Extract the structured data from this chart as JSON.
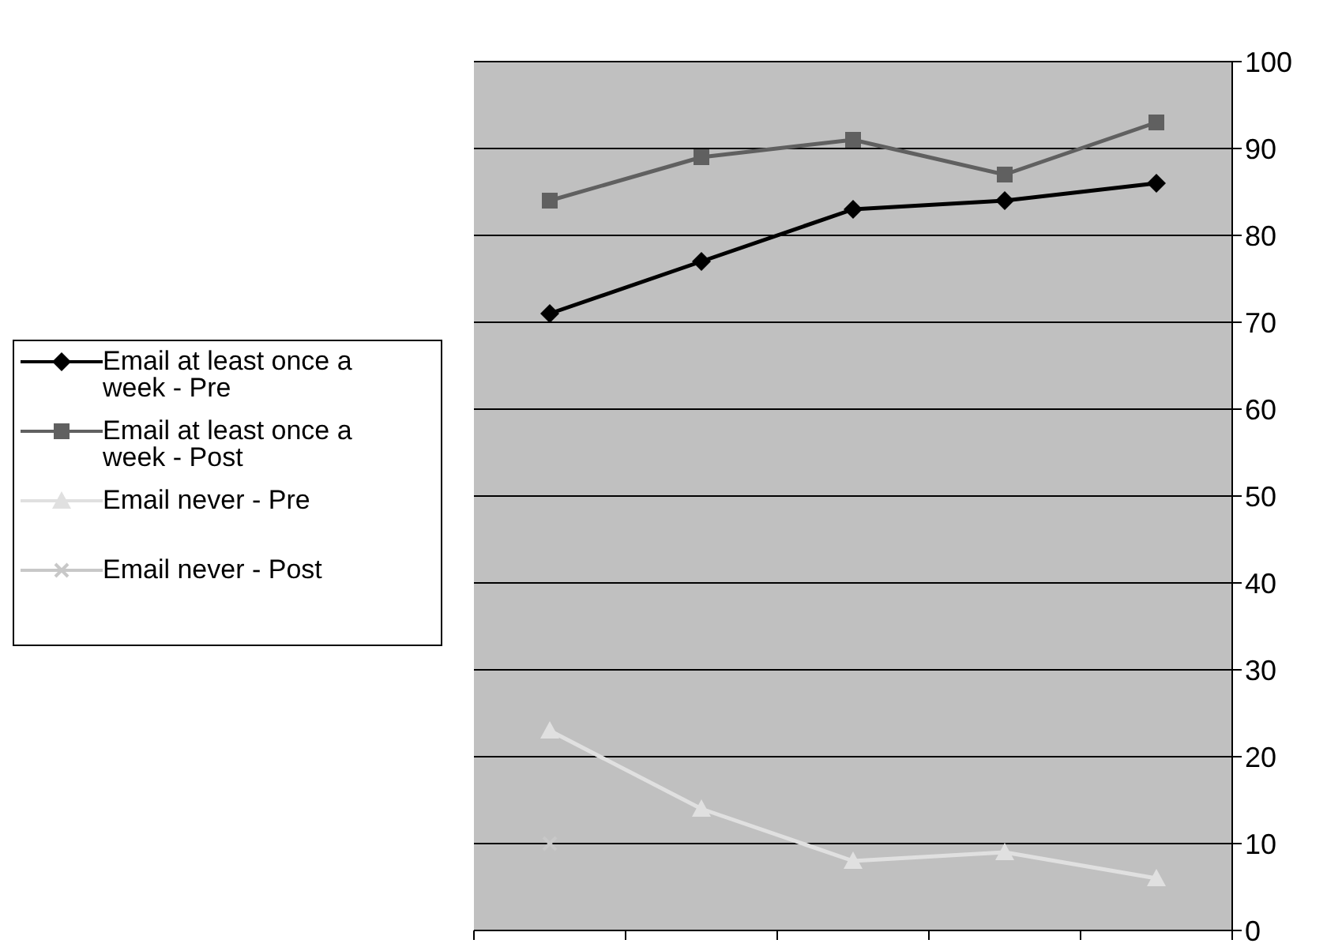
{
  "chart_data": {
    "type": "line",
    "categories": [
      null,
      null,
      null,
      null,
      null
    ],
    "series": [
      {
        "name": "Email at least once a week  - Pre",
        "color": "#000000",
        "marker": "diamond",
        "values": [
          71,
          77,
          83,
          84,
          86
        ]
      },
      {
        "name": "Email at least once a week  - Post",
        "color": "#606060",
        "marker": "square",
        "values": [
          84,
          89,
          91,
          87,
          93
        ]
      },
      {
        "name": "Email never - Pre",
        "color": "#e0e0e0",
        "marker": "triangle",
        "values": [
          23,
          14,
          8,
          9,
          6
        ]
      },
      {
        "name": "Email never - Post",
        "color": "#c8c8c8",
        "marker": "cross",
        "values": [
          10,
          null,
          null,
          null,
          null
        ]
      }
    ],
    "ylim": [
      0,
      100
    ],
    "yticks": [
      0,
      10,
      20,
      30,
      40,
      50,
      60,
      70,
      80,
      90,
      100
    ],
    "grid": "y",
    "legend": "left"
  }
}
